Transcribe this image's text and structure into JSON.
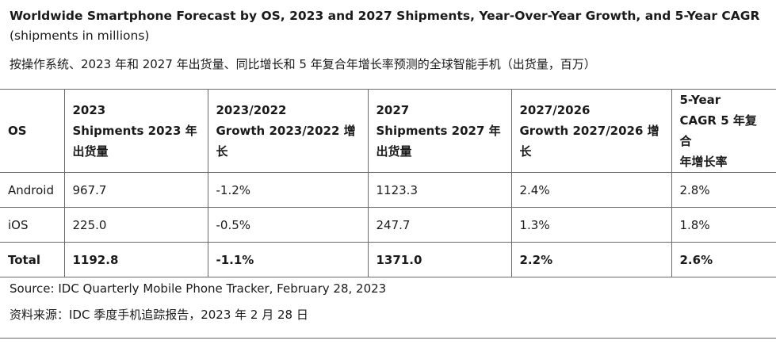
{
  "title": {
    "bold": "Worldwide Smartphone Forecast by OS, 2023 and 2027 Shipments, Year-Over-Year Growth, and 5-Year CAGR",
    "normal": " (shipments in millions)"
  },
  "subtitle_cn": "按操作系统、2023 年和 2027 年出货量、同比增长和 5 年复合年增长率预测的全球智能手机（出货量，百万）",
  "table": {
    "headers": [
      {
        "lines": [
          "OS"
        ]
      },
      {
        "lines": [
          "2023",
          "Shipments 2023 年",
          "出货量"
        ]
      },
      {
        "lines": [
          "2023/2022",
          "Growth 2023/2022 增长"
        ]
      },
      {
        "lines": [
          "2027",
          "Shipments 2027 年",
          "出货量"
        ]
      },
      {
        "lines": [
          "2027/2026",
          "Growth 2027/2026 增长"
        ]
      },
      {
        "lines": [
          "5-Year",
          "CAGR 5 年复合",
          "年增长率"
        ]
      }
    ],
    "rows": [
      {
        "os": "Android",
        "ship_2023": "967.7",
        "growth_2023": "-1.2%",
        "ship_2027": "1123.3",
        "growth_2027": "2.4%",
        "cagr": "2.8%"
      },
      {
        "os": "iOS",
        "ship_2023": "225.0",
        "growth_2023": "-0.5%",
        "ship_2027": "247.7",
        "growth_2027": "1.3%",
        "cagr": "1.8%"
      }
    ],
    "total": {
      "os": "Total",
      "ship_2023": "1192.8",
      "growth_2023": "-1.1%",
      "ship_2027": "1371.0",
      "growth_2027": "2.2%",
      "cagr": "2.6%"
    }
  },
  "source_en": "Source: IDC Quarterly Mobile Phone Tracker, February 28, 2023",
  "source_cn": "资料来源：IDC 季度手机追踪报告，2023 年 2 月 28 日"
}
